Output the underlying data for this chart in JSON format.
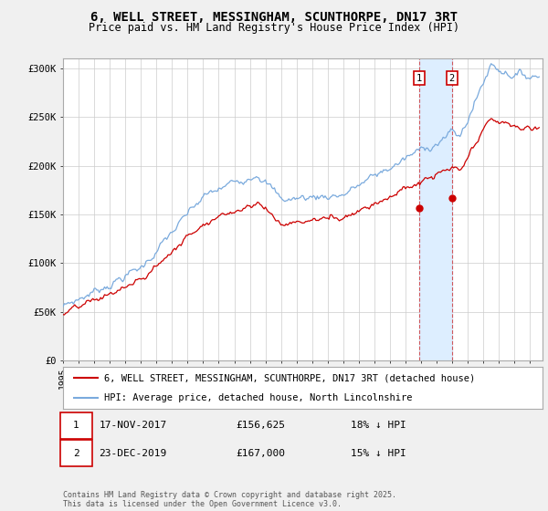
{
  "title": "6, WELL STREET, MESSINGHAM, SCUNTHORPE, DN17 3RT",
  "subtitle": "Price paid vs. HM Land Registry's House Price Index (HPI)",
  "ylabel_ticks": [
    "£0",
    "£50K",
    "£100K",
    "£150K",
    "£200K",
    "£250K",
    "£300K"
  ],
  "ytick_values": [
    0,
    50000,
    100000,
    150000,
    200000,
    250000,
    300000
  ],
  "ylim": [
    0,
    310000
  ],
  "xlim_start": 1995.0,
  "xlim_end": 2025.8,
  "legend_line1": "6, WELL STREET, MESSINGHAM, SCUNTHORPE, DN17 3RT (detached house)",
  "legend_line2": "HPI: Average price, detached house, North Lincolnshire",
  "sale1_date": "17-NOV-2017",
  "sale1_price": "£156,625",
  "sale1_hpi": "18% ↓ HPI",
  "sale1_x": 2017.88,
  "sale1_y": 156625,
  "sale2_date": "23-DEC-2019",
  "sale2_price": "£167,000",
  "sale2_hpi": "15% ↓ HPI",
  "sale2_x": 2019.98,
  "sale2_y": 167000,
  "highlight_xmin": 2017.88,
  "highlight_xmax": 2019.98,
  "line1_color": "#cc0000",
  "line2_color": "#7aaadd",
  "highlight_color": "#ddeeff",
  "grid_color": "#cccccc",
  "background_color": "#f0f0f0",
  "plot_bg_color": "#ffffff",
  "copyright_text": "Contains HM Land Registry data © Crown copyright and database right 2025.\nThis data is licensed under the Open Government Licence v3.0.",
  "title_fontsize": 10,
  "subtitle_fontsize": 8.5,
  "tick_fontsize": 7.5,
  "legend_fontsize": 7.5,
  "annotation_fontsize": 8
}
